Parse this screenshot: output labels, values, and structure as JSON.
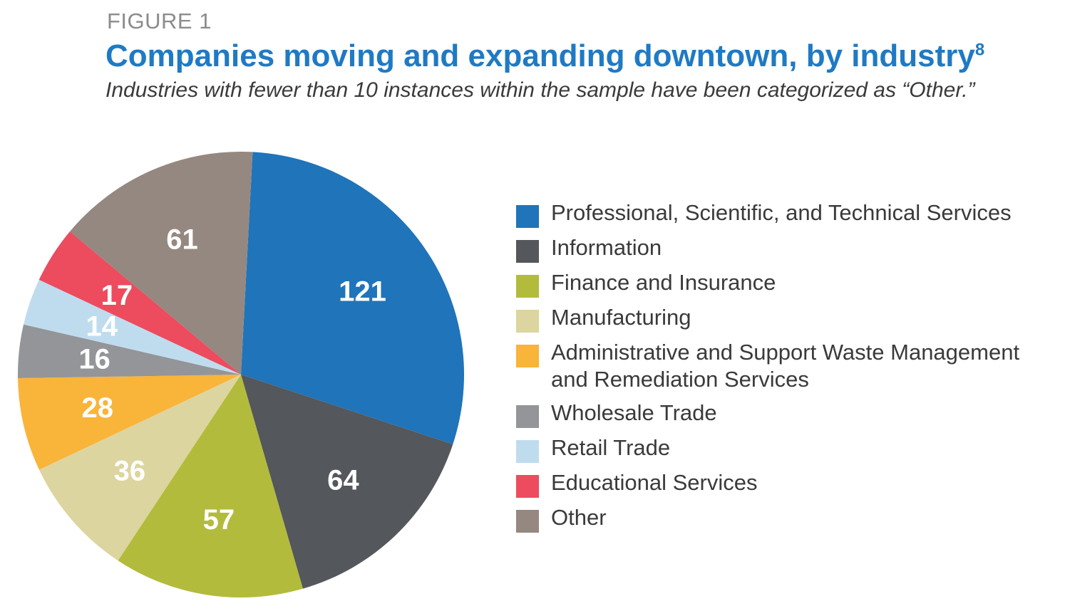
{
  "header": {
    "figure_label": "FIGURE 1",
    "title": "Companies moving and expanding downtown, by industry",
    "title_footnote": "8",
    "subtitle": "Industries with fewer than 10 instances within the sample have been categorized as “Other.”"
  },
  "chart_data": {
    "type": "pie",
    "title": "Companies moving and expanding downtown, by industry",
    "subtitle": "Industries with fewer than 10 instances within the sample have been categorized as “Other.”",
    "legend_position": "right",
    "start_angle_deg": 3,
    "direction": "clockwise",
    "slices": [
      {
        "name": "Professional, Scientific, and Technical Services",
        "value": 121,
        "label": "121",
        "color": "#2074b9"
      },
      {
        "name": "Information",
        "value": 64,
        "label": "64",
        "color": "#54575b"
      },
      {
        "name": "Finance and Insurance",
        "value": 57,
        "label": "57",
        "color": "#b3bb3c"
      },
      {
        "name": "Manufacturing",
        "value": 36,
        "label": "36",
        "color": "#dcd59f"
      },
      {
        "name": "Administrative and Support Waste Management and Remediation Services",
        "value": 28,
        "label": "28",
        "color": "#f9b43a"
      },
      {
        "name": "Wholesale Trade",
        "value": 16,
        "label": "16",
        "color": "#939598"
      },
      {
        "name": "Retail Trade",
        "value": 14,
        "label": "14",
        "color": "#bfdcef"
      },
      {
        "name": "Educational Services",
        "value": 17,
        "label": "17",
        "color": "#ec4c5e"
      },
      {
        "name": "Other",
        "value": 61,
        "label": "61",
        "color": "#958880"
      }
    ]
  }
}
